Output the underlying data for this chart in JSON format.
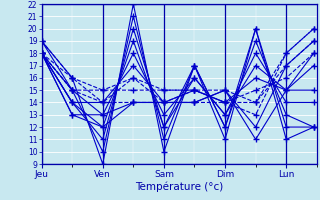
{
  "xlabel": "Température (°c)",
  "bg_color": "#c8e8f0",
  "line_color": "#0000cc",
  "ylim": [
    9,
    22
  ],
  "yticks": [
    9,
    10,
    11,
    12,
    13,
    14,
    15,
    16,
    17,
    18,
    19,
    20,
    21,
    22
  ],
  "days": [
    "Jeu",
    "Ven",
    "Sam",
    "Dim",
    "Lun"
  ],
  "series": [
    {
      "x": [
        0.0,
        0.5,
        1.0,
        1.5,
        2.0,
        2.5,
        3.0,
        3.5,
        4.0,
        4.45
      ],
      "y": [
        19,
        16,
        9,
        22,
        10,
        17,
        11,
        20,
        11,
        12
      ],
      "ls": "-"
    },
    {
      "x": [
        0.0,
        0.5,
        1.0,
        1.5,
        2.0,
        2.5,
        3.0,
        3.5,
        4.0,
        4.45
      ],
      "y": [
        19,
        15,
        10,
        21,
        11,
        17,
        12,
        20,
        12,
        12
      ],
      "ls": "-"
    },
    {
      "x": [
        0.0,
        0.5,
        1.0,
        1.5,
        2.0,
        2.5,
        3.0,
        3.5,
        4.0,
        4.45
      ],
      "y": [
        18,
        14,
        11,
        20,
        12,
        17,
        12,
        19,
        13,
        12
      ],
      "ls": "-"
    },
    {
      "x": [
        0.0,
        0.5,
        1.0,
        1.5,
        2.0,
        2.5,
        3.0,
        3.5,
        4.0,
        4.45
      ],
      "y": [
        18,
        13,
        12,
        19,
        12,
        16,
        13,
        18,
        14,
        14
      ],
      "ls": "-"
    },
    {
      "x": [
        0.0,
        0.5,
        1.0,
        1.5,
        2.0,
        2.5,
        3.0,
        3.5,
        4.0,
        4.45
      ],
      "y": [
        18,
        13,
        13,
        18,
        13,
        16,
        13,
        17,
        15,
        15
      ],
      "ls": "-"
    },
    {
      "x": [
        0.0,
        0.5,
        1.0,
        1.5,
        2.0,
        2.5,
        3.0,
        3.5,
        4.0,
        4.45
      ],
      "y": [
        18,
        14,
        14,
        17,
        14,
        15,
        14,
        16,
        15,
        17
      ],
      "ls": "-"
    },
    {
      "x": [
        0.0,
        0.5,
        1.0,
        1.5,
        2.0,
        2.5,
        3.0,
        3.5,
        4.0,
        4.45
      ],
      "y": [
        18,
        15,
        14,
        16,
        14,
        15,
        14,
        15,
        16,
        18
      ],
      "ls": "--"
    },
    {
      "x": [
        0.0,
        0.5,
        1.0,
        1.5,
        2.0,
        2.5,
        3.0,
        3.5,
        4.0,
        4.45
      ],
      "y": [
        18,
        15,
        15,
        16,
        15,
        15,
        15,
        14,
        17,
        19
      ],
      "ls": "--"
    },
    {
      "x": [
        0.0,
        0.5,
        1.0,
        1.5,
        2.0,
        2.5,
        3.0,
        3.5,
        4.0,
        4.45
      ],
      "y": [
        19,
        16,
        15,
        15,
        15,
        15,
        14,
        14,
        18,
        20
      ],
      "ls": "--"
    },
    {
      "x": [
        0.0,
        0.5,
        1.0,
        1.5,
        2.0,
        2.5,
        3.0,
        3.5,
        4.0,
        4.45
      ],
      "y": [
        18,
        16,
        14,
        14,
        14,
        14,
        14,
        13,
        18,
        20
      ],
      "ls": "--"
    },
    {
      "x": [
        0.0,
        0.5,
        1.0,
        1.5,
        2.0,
        2.5,
        3.0,
        3.5,
        4.0,
        4.45
      ],
      "y": [
        18,
        15,
        13,
        14,
        14,
        14,
        15,
        12,
        17,
        19
      ],
      "ls": "-"
    },
    {
      "x": [
        0.0,
        0.5,
        1.0,
        1.5,
        2.0,
        2.5,
        3.0,
        3.5,
        4.0,
        4.45
      ],
      "y": [
        18,
        14,
        12,
        14,
        14,
        14,
        15,
        11,
        15,
        18
      ],
      "ls": "-"
    }
  ]
}
